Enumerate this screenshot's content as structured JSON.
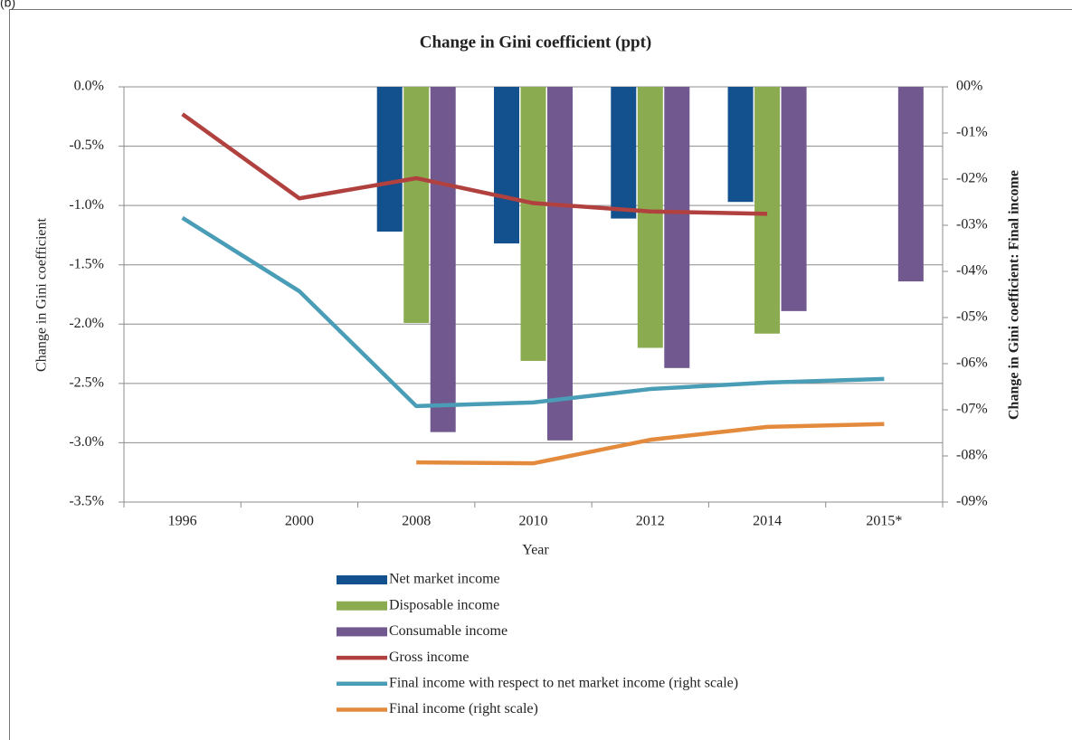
{
  "panel_label": "(b)",
  "chart_data": {
    "type": "bar",
    "title": "Change in Gini coefficient (ppt)",
    "x_label": "Year",
    "y_label": "Change in Gini coefficient",
    "y2_label": "Change in Gini coefficient: Final income",
    "categories": [
      "1996",
      "2000",
      "2008",
      "2010",
      "2012",
      "2014",
      "2015*"
    ],
    "ylim": [
      -3.5,
      0
    ],
    "yticks": [
      {
        "value": 0,
        "label": "0.0%"
      },
      {
        "value": -0.5,
        "label": "-0.5%"
      },
      {
        "value": -1,
        "label": "-1.0%"
      },
      {
        "value": -1.5,
        "label": "-1.5%"
      },
      {
        "value": -2,
        "label": "-2.0%"
      },
      {
        "value": -2.5,
        "label": "-2.5%"
      },
      {
        "value": -3,
        "label": "-3.0%"
      },
      {
        "value": -3.5,
        "label": "-3.5%"
      }
    ],
    "y2lim": [
      -9,
      0
    ],
    "y2ticks": [
      {
        "value": 0,
        "label": "00%"
      },
      {
        "value": -1,
        "label": "-01%"
      },
      {
        "value": -2,
        "label": "-02%"
      },
      {
        "value": -3,
        "label": "-03%"
      },
      {
        "value": -4,
        "label": "-04%"
      },
      {
        "value": -5,
        "label": "-05%"
      },
      {
        "value": -6,
        "label": "-06%"
      },
      {
        "value": -7,
        "label": "-07%"
      },
      {
        "value": -8,
        "label": "-08%"
      },
      {
        "value": -9,
        "label": "-09%"
      }
    ],
    "grid": true,
    "legend": "bottom",
    "series": [
      {
        "name": "Net market income",
        "type": "bar",
        "color": "#12508e",
        "values": [
          null,
          null,
          -1.22,
          -1.32,
          -1.11,
          -0.97,
          null
        ]
      },
      {
        "name": "Disposable income",
        "type": "bar",
        "color": "#8aab4f",
        "values": [
          null,
          null,
          -1.99,
          -2.31,
          -2.2,
          -2.08,
          null
        ]
      },
      {
        "name": "Consumable income",
        "type": "bar",
        "color": "#71588f",
        "values": [
          null,
          null,
          -2.91,
          -2.98,
          -2.37,
          -1.89,
          -1.64
        ]
      },
      {
        "name": "Gross income",
        "type": "line",
        "color": "#b0413e",
        "values": [
          -0.23,
          -0.94,
          -0.77,
          -0.98,
          -1.05,
          -1.07,
          null
        ]
      },
      {
        "name": "Final income with respect to net market income (right scale)",
        "type": "line",
        "axis": "y2",
        "color": "#4a9db6",
        "values": [
          -2.84,
          -4.43,
          -6.92,
          -6.84,
          -6.55,
          -6.41,
          -6.33
        ]
      },
      {
        "name": "Final income (right scale)",
        "type": "line",
        "axis": "y2",
        "color": "#e48a3c",
        "values": [
          null,
          null,
          -8.14,
          -8.16,
          -7.65,
          -7.37,
          -7.31
        ]
      }
    ]
  }
}
